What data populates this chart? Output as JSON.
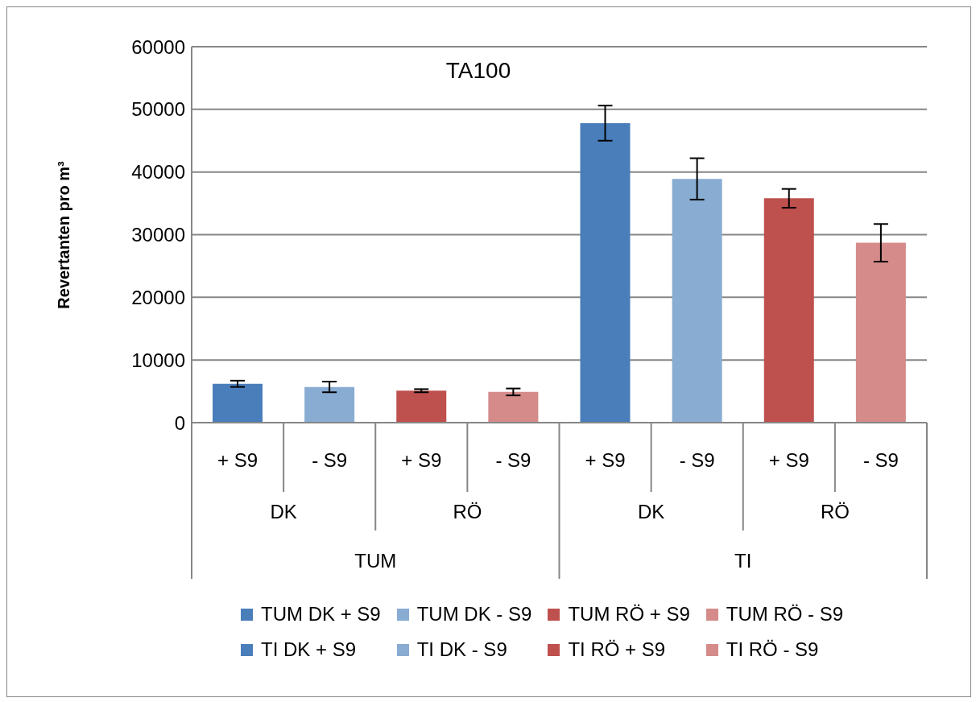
{
  "chart_data": {
    "type": "bar",
    "title": "TA100",
    "ylabel": "Revertanten pro m³",
    "categories": [
      "+ S9",
      "- S9",
      "+ S9",
      "- S9",
      "+ S9",
      "- S9",
      "+ S9",
      "- S9"
    ],
    "annotations": [
      "DK",
      "RÖ",
      "DK",
      "RÖ",
      "TUM",
      "TI"
    ],
    "stacked": true,
    "series": [
      {
        "name": "TUM DK + S9",
        "color": "#4a7ebb",
        "values": [
          6200,
          null,
          null,
          null,
          null,
          null,
          null,
          null
        ],
        "errors": [
          500,
          null,
          null,
          null,
          null,
          null,
          null,
          null
        ]
      },
      {
        "name": "TUM DK - S9",
        "color": "#88acd2",
        "values": [
          null,
          5700,
          null,
          null,
          null,
          null,
          null,
          null
        ],
        "errors": [
          null,
          850,
          null,
          null,
          null,
          null,
          null,
          null
        ]
      },
      {
        "name": "TUM RÖ + S9",
        "color": "#be504e",
        "values": [
          null,
          null,
          5100,
          null,
          null,
          null,
          null,
          null
        ],
        "errors": [
          null,
          null,
          250,
          null,
          null,
          null,
          null,
          null
        ]
      },
      {
        "name": "TUM RÖ - S9",
        "color": "#d48b8a",
        "values": [
          null,
          null,
          null,
          4900,
          null,
          null,
          null,
          null
        ],
        "errors": [
          null,
          null,
          null,
          550,
          null,
          null,
          null,
          null
        ]
      },
      {
        "name": "TI DK + S9",
        "color": "#4a7ebb",
        "values": [
          null,
          null,
          null,
          null,
          47800,
          null,
          null,
          null
        ],
        "errors": [
          null,
          null,
          null,
          null,
          2800,
          null,
          null,
          null
        ]
      },
      {
        "name": "TI DK - S9",
        "color": "#88acd2",
        "values": [
          null,
          null,
          null,
          null,
          null,
          38900,
          null,
          null
        ],
        "errors": [
          null,
          null,
          null,
          null,
          null,
          3300,
          null,
          null
        ]
      },
      {
        "name": "TI RÖ + S9",
        "color": "#be504e",
        "values": [
          null,
          null,
          null,
          null,
          null,
          null,
          35800,
          null
        ],
        "errors": [
          null,
          null,
          null,
          null,
          null,
          null,
          1500,
          null
        ]
      },
      {
        "name": "TI RÖ - S9",
        "color": "#d48b8a",
        "values": [
          null,
          null,
          null,
          null,
          null,
          null,
          null,
          28700
        ],
        "errors": [
          null,
          null,
          null,
          null,
          null,
          null,
          null,
          3000
        ]
      }
    ],
    "ylim": [
      0,
      60000
    ],
    "yticks": [
      0,
      10000,
      20000,
      30000,
      40000,
      50000,
      60000
    ],
    "grid": "y",
    "legend": "bottom"
  }
}
